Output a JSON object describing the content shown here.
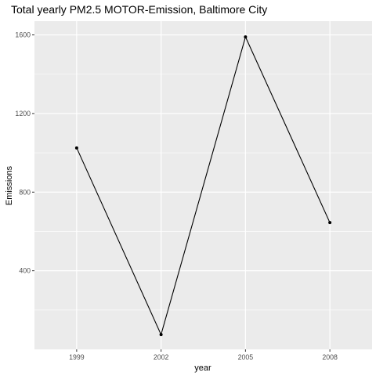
{
  "chart_data": {
    "type": "line",
    "title": "Total yearly PM2.5 MOTOR-Emission, Baltimore City",
    "xlabel": "year",
    "ylabel": "Emissions",
    "x": [
      1999,
      2002,
      2005,
      2008
    ],
    "x_tick_labels": [
      "1999",
      "2002",
      "2005",
      "2008"
    ],
    "xlim": [
      1997.5,
      2009.5
    ],
    "y_ticks": [
      400,
      800,
      1200,
      1600
    ],
    "y_tick_labels": [
      "400",
      "800",
      "1200",
      "1600"
    ],
    "ylim": [
      0,
      1670
    ],
    "series": [
      {
        "values": [
          1025,
          75,
          1590,
          645
        ]
      }
    ],
    "grid": true,
    "legend": "none",
    "colors": {
      "panel": "#ebebeb",
      "grid_major": "#ffffff",
      "line": "#000000",
      "point": "#000000",
      "tick": "#333333"
    }
  }
}
